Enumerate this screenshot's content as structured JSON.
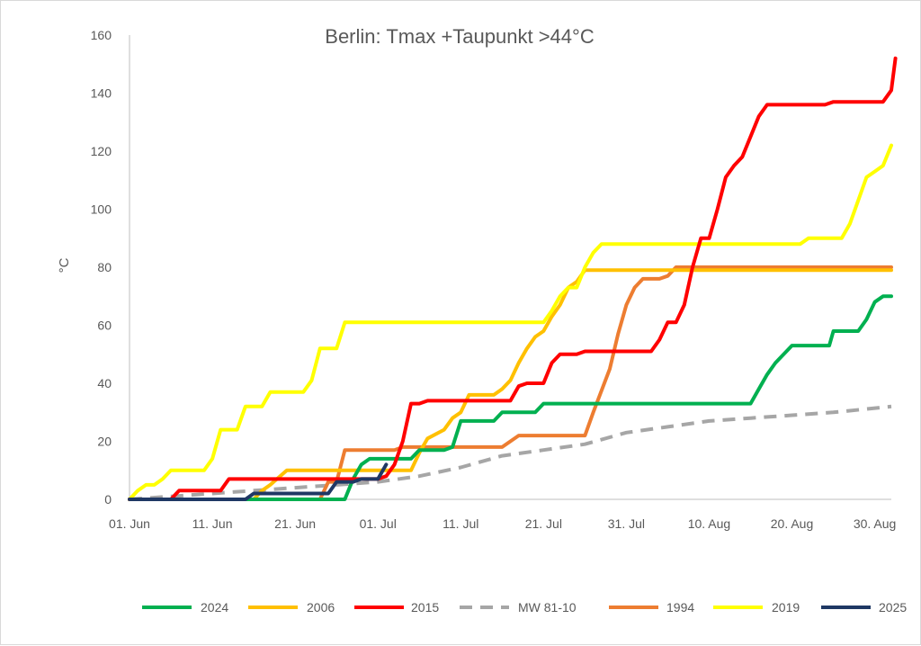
{
  "chart_data": {
    "type": "line",
    "title": "Berlin:  Tmax +Taupunkt  >44°C",
    "xlabel": "",
    "ylabel": "°C",
    "ylim": [
      0,
      160
    ],
    "y_ticks": [
      "0",
      "20",
      "40",
      "60",
      "80",
      "100",
      "120",
      "140",
      "160"
    ],
    "x_range_days": [
      0,
      92
    ],
    "x_ticks": [
      {
        "day": 0,
        "label": "01. Jun"
      },
      {
        "day": 10,
        "label": "11. Jun"
      },
      {
        "day": 20,
        "label": "21. Jun"
      },
      {
        "day": 30,
        "label": "01. Jul"
      },
      {
        "day": 40,
        "label": "11. Jul"
      },
      {
        "day": 50,
        "label": "21. Jul"
      },
      {
        "day": 60,
        "label": "31. Jul"
      },
      {
        "day": 70,
        "label": "10. Aug"
      },
      {
        "day": 80,
        "label": "20. Aug"
      },
      {
        "day": 90,
        "label": "30. Aug"
      }
    ],
    "grid": false,
    "legend_position": "bottom",
    "series": [
      {
        "name": "2024",
        "color": "#00b050",
        "dashed": false,
        "points": [
          [
            0,
            0
          ],
          [
            26,
            0
          ],
          [
            27,
            7
          ],
          [
            28,
            12
          ],
          [
            29,
            14
          ],
          [
            34,
            14
          ],
          [
            35,
            17
          ],
          [
            37,
            17
          ],
          [
            38,
            17
          ],
          [
            39,
            18
          ],
          [
            40,
            27
          ],
          [
            44,
            27
          ],
          [
            45,
            30
          ],
          [
            49,
            30
          ],
          [
            50,
            33
          ],
          [
            75,
            33
          ],
          [
            76,
            38
          ],
          [
            77,
            43
          ],
          [
            78,
            47
          ],
          [
            79,
            50
          ],
          [
            80,
            53
          ],
          [
            84,
            53
          ],
          [
            84.5,
            53
          ],
          [
            85,
            58
          ],
          [
            87,
            58
          ],
          [
            88,
            58
          ],
          [
            89,
            62
          ],
          [
            90,
            68
          ],
          [
            91,
            70
          ],
          [
            92,
            70
          ]
        ]
      },
      {
        "name": "2006",
        "color": "#ffc000",
        "dashed": false,
        "points": [
          [
            0,
            0
          ],
          [
            15,
            0
          ],
          [
            16,
            3
          ],
          [
            17,
            5
          ],
          [
            19,
            10
          ],
          [
            30,
            10
          ],
          [
            34,
            10
          ],
          [
            35,
            16
          ],
          [
            36,
            21
          ],
          [
            38,
            24
          ],
          [
            39,
            28
          ],
          [
            40,
            30
          ],
          [
            41,
            36
          ],
          [
            44,
            36
          ],
          [
            45,
            38
          ],
          [
            46,
            41
          ],
          [
            47,
            47
          ],
          [
            48,
            52
          ],
          [
            49,
            56
          ],
          [
            50,
            58
          ],
          [
            51,
            63
          ],
          [
            52,
            67
          ],
          [
            53,
            73
          ],
          [
            54,
            75
          ],
          [
            55,
            79
          ],
          [
            92,
            79
          ]
        ]
      },
      {
        "name": "2015",
        "color": "#ff0000",
        "dashed": false,
        "points": [
          [
            0,
            0
          ],
          [
            5,
            0
          ],
          [
            6,
            3
          ],
          [
            11,
            3
          ],
          [
            12,
            7
          ],
          [
            30,
            7
          ],
          [
            31,
            8
          ],
          [
            32,
            12
          ],
          [
            33,
            20
          ],
          [
            34,
            33
          ],
          [
            35,
            33
          ],
          [
            36,
            34
          ],
          [
            46,
            34
          ],
          [
            47,
            39
          ],
          [
            48,
            40
          ],
          [
            50,
            40
          ],
          [
            51,
            47
          ],
          [
            52,
            50
          ],
          [
            54,
            50
          ],
          [
            55,
            51
          ],
          [
            63,
            51
          ],
          [
            64,
            55
          ],
          [
            65,
            61
          ],
          [
            66,
            61
          ],
          [
            67,
            67
          ],
          [
            68,
            80
          ],
          [
            69,
            90
          ],
          [
            70,
            90
          ],
          [
            71,
            100
          ],
          [
            72,
            111
          ],
          [
            73,
            115
          ],
          [
            74,
            118
          ],
          [
            75,
            125
          ],
          [
            76,
            132
          ],
          [
            77,
            136
          ],
          [
            83,
            136
          ],
          [
            84,
            136
          ],
          [
            85,
            137
          ],
          [
            91,
            137
          ],
          [
            92,
            141
          ],
          [
            92.5,
            152
          ]
        ]
      },
      {
        "name": "MW 81-10",
        "color": "#a6a6a6",
        "dashed": true,
        "points": [
          [
            0,
            0
          ],
          [
            5,
            1
          ],
          [
            10,
            2
          ],
          [
            15,
            3
          ],
          [
            20,
            4
          ],
          [
            25,
            5
          ],
          [
            30,
            6
          ],
          [
            35,
            8
          ],
          [
            40,
            11
          ],
          [
            45,
            15
          ],
          [
            50,
            17
          ],
          [
            55,
            19
          ],
          [
            60,
            23
          ],
          [
            65,
            25
          ],
          [
            70,
            27
          ],
          [
            75,
            28
          ],
          [
            80,
            29
          ],
          [
            85,
            30
          ],
          [
            92,
            32
          ]
        ]
      },
      {
        "name": "1994",
        "color": "#ed7d31",
        "dashed": false,
        "points": [
          [
            0,
            0
          ],
          [
            23,
            0
          ],
          [
            24,
            6
          ],
          [
            25,
            6
          ],
          [
            26,
            17
          ],
          [
            30,
            17
          ],
          [
            32,
            17
          ],
          [
            33,
            18
          ],
          [
            45,
            18
          ],
          [
            46,
            20
          ],
          [
            47,
            22
          ],
          [
            55,
            22
          ],
          [
            56,
            30
          ],
          [
            58,
            45
          ],
          [
            59,
            57
          ],
          [
            60,
            67
          ],
          [
            61,
            73
          ],
          [
            62,
            76
          ],
          [
            64,
            76
          ],
          [
            65,
            77
          ],
          [
            66,
            80
          ],
          [
            92,
            80
          ]
        ]
      },
      {
        "name": "2019",
        "color": "#ffff00",
        "dashed": false,
        "points": [
          [
            0,
            0
          ],
          [
            1,
            3
          ],
          [
            2,
            5
          ],
          [
            3,
            5
          ],
          [
            4,
            7
          ],
          [
            5,
            10
          ],
          [
            9,
            10
          ],
          [
            10,
            14
          ],
          [
            11,
            24
          ],
          [
            13,
            24
          ],
          [
            14,
            32
          ],
          [
            16,
            32
          ],
          [
            17,
            37
          ],
          [
            21,
            37
          ],
          [
            22,
            41
          ],
          [
            23,
            52
          ],
          [
            25,
            52
          ],
          [
            26,
            61
          ],
          [
            50,
            61
          ],
          [
            51,
            65
          ],
          [
            52,
            70
          ],
          [
            53,
            73
          ],
          [
            54,
            73
          ],
          [
            55,
            80
          ],
          [
            56,
            85
          ],
          [
            57,
            88
          ],
          [
            81,
            88
          ],
          [
            82,
            90
          ],
          [
            86,
            90
          ],
          [
            87,
            95
          ],
          [
            88,
            103
          ],
          [
            89,
            111
          ],
          [
            90,
            113
          ],
          [
            91,
            115
          ],
          [
            92,
            122
          ]
        ]
      },
      {
        "name": "2025",
        "color": "#1f3864",
        "dashed": false,
        "points": [
          [
            0,
            0
          ],
          [
            14,
            0
          ],
          [
            15,
            2
          ],
          [
            24,
            2
          ],
          [
            25,
            6
          ],
          [
            27,
            6
          ],
          [
            28,
            7
          ],
          [
            30,
            7
          ],
          [
            31,
            12
          ]
        ]
      }
    ]
  }
}
